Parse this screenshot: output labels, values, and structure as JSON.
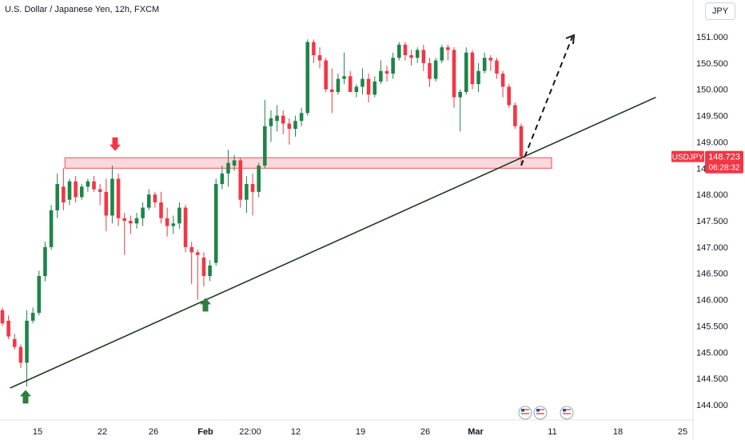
{
  "header": {
    "title": "U.S. Dollar / Japanese Yen, 12h, FXCM",
    "currency_button": "JPY"
  },
  "price_label": {
    "symbol": "USDJPY",
    "price": "148.723",
    "countdown": "06:28:32"
  },
  "colors": {
    "up": "#22ab94",
    "up_fill": "#1e8449",
    "down": "#f23645",
    "trendline": "#1f3a1f",
    "zone_fill": "#f7b8bd",
    "zone_border": "#e8505b",
    "arrow_up": "#2e7d3e",
    "arrow_down": "#f23645"
  },
  "icons": [
    "us-flag-event-icon",
    "us-flag-event-icon",
    "us-flag-event-icon"
  ],
  "chart_data": {
    "type": "candlestick",
    "title": "U.S. Dollar / Japanese Yen, 12h, FXCM",
    "y_axis": {
      "ylim": [
        143.9,
        151.3
      ],
      "ticks": [
        "151.000",
        "150.500",
        "150.000",
        "149.500",
        "149.000",
        "148.500",
        "148.000",
        "147.500",
        "147.000",
        "146.500",
        "146.000",
        "145.500",
        "145.000",
        "144.500",
        "144.000"
      ]
    },
    "x_axis": {
      "ticks": [
        "15",
        "22",
        "26",
        "Feb",
        "22:00",
        "12",
        "19",
        "26",
        "Mar",
        "11",
        "18",
        "25"
      ]
    },
    "candles": [
      [
        145.8,
        145.85,
        145.5,
        145.55
      ],
      [
        145.6,
        145.7,
        145.25,
        145.3
      ],
      [
        145.25,
        145.35,
        145.05,
        145.1
      ],
      [
        145.1,
        145.15,
        144.7,
        144.8
      ],
      [
        144.8,
        145.8,
        144.35,
        145.6
      ],
      [
        145.6,
        145.85,
        145.55,
        145.75
      ],
      [
        145.75,
        146.55,
        145.7,
        146.45
      ],
      [
        146.45,
        147.1,
        146.35,
        147.0
      ],
      [
        147.0,
        147.8,
        146.95,
        147.7
      ],
      [
        147.7,
        148.4,
        147.55,
        148.2
      ],
      [
        148.15,
        148.5,
        147.7,
        147.85
      ],
      [
        147.9,
        148.3,
        147.8,
        148.25
      ],
      [
        148.25,
        148.35,
        147.85,
        147.95
      ],
      [
        147.95,
        148.2,
        147.9,
        148.15
      ],
      [
        148.15,
        148.3,
        148.05,
        148.25
      ],
      [
        148.25,
        148.35,
        148.05,
        148.1
      ],
      [
        148.1,
        148.2,
        147.8,
        148.05
      ],
      [
        148.05,
        148.3,
        147.3,
        147.6
      ],
      [
        147.6,
        148.55,
        147.45,
        148.3
      ],
      [
        148.3,
        148.4,
        147.4,
        147.55
      ],
      [
        147.55,
        147.65,
        146.85,
        147.5
      ],
      [
        147.5,
        147.6,
        147.25,
        147.45
      ],
      [
        147.45,
        147.65,
        147.35,
        147.55
      ],
      [
        147.55,
        147.85,
        147.4,
        147.75
      ],
      [
        147.75,
        148.1,
        147.7,
        148.0
      ],
      [
        148.0,
        148.05,
        147.75,
        147.85
      ],
      [
        147.85,
        148.05,
        147.45,
        147.55
      ],
      [
        147.55,
        147.75,
        147.2,
        147.4
      ],
      [
        147.4,
        147.6,
        147.25,
        147.45
      ],
      [
        147.45,
        147.85,
        147.35,
        147.75
      ],
      [
        147.75,
        147.8,
        146.9,
        147.0
      ],
      [
        147.0,
        147.1,
        146.3,
        146.9
      ],
      [
        146.9,
        146.95,
        146.0,
        146.85
      ],
      [
        146.8,
        146.9,
        146.25,
        146.45
      ],
      [
        146.45,
        146.75,
        146.35,
        146.65
      ],
      [
        146.7,
        148.3,
        146.65,
        148.2
      ],
      [
        148.2,
        148.55,
        148.1,
        148.4
      ],
      [
        148.4,
        148.85,
        148.15,
        148.6
      ],
      [
        148.55,
        148.75,
        148.45,
        148.65
      ],
      [
        148.65,
        148.7,
        147.75,
        147.9
      ],
      [
        147.9,
        148.35,
        147.65,
        148.2
      ],
      [
        148.2,
        148.4,
        147.6,
        148.05
      ],
      [
        148.05,
        148.6,
        147.95,
        148.55
      ],
      [
        148.55,
        149.8,
        148.5,
        149.3
      ],
      [
        149.3,
        149.6,
        149.0,
        149.45
      ],
      [
        149.4,
        149.7,
        149.2,
        149.5
      ],
      [
        149.5,
        149.6,
        149.15,
        149.35
      ],
      [
        149.35,
        149.45,
        148.95,
        149.25
      ],
      [
        149.25,
        149.5,
        149.1,
        149.4
      ],
      [
        149.4,
        149.65,
        149.3,
        149.55
      ],
      [
        149.55,
        150.95,
        149.5,
        150.9
      ],
      [
        150.9,
        150.95,
        150.5,
        150.65
      ],
      [
        150.65,
        150.8,
        150.4,
        150.55
      ],
      [
        150.55,
        150.6,
        149.95,
        150.0
      ],
      [
        150.0,
        150.4,
        149.55,
        149.95
      ],
      [
        149.95,
        150.3,
        149.9,
        150.2
      ],
      [
        150.2,
        150.7,
        150.1,
        150.25
      ],
      [
        150.25,
        150.35,
        149.95,
        149.95
      ],
      [
        149.95,
        150.1,
        149.85,
        150.05
      ],
      [
        150.05,
        150.4,
        149.9,
        150.2
      ],
      [
        150.2,
        150.3,
        149.75,
        149.9
      ],
      [
        149.9,
        150.25,
        149.85,
        150.15
      ],
      [
        150.15,
        150.55,
        150.1,
        150.35
      ],
      [
        150.35,
        150.45,
        150.15,
        150.3
      ],
      [
        150.3,
        150.7,
        150.2,
        150.6
      ],
      [
        150.6,
        150.9,
        150.55,
        150.85
      ],
      [
        150.85,
        150.9,
        150.55,
        150.65
      ],
      [
        150.65,
        150.75,
        150.45,
        150.6
      ],
      [
        150.6,
        150.8,
        150.5,
        150.75
      ],
      [
        150.75,
        150.85,
        150.35,
        150.5
      ],
      [
        150.5,
        150.6,
        150.05,
        150.2
      ],
      [
        150.2,
        150.6,
        150.15,
        150.55
      ],
      [
        150.55,
        150.85,
        150.5,
        150.8
      ],
      [
        150.8,
        150.85,
        150.55,
        150.75
      ],
      [
        150.75,
        150.8,
        149.65,
        149.85
      ],
      [
        149.85,
        150.0,
        149.2,
        149.95
      ],
      [
        149.95,
        150.8,
        149.9,
        150.7
      ],
      [
        150.7,
        150.75,
        150.0,
        150.1
      ],
      [
        150.1,
        150.5,
        149.95,
        150.35
      ],
      [
        150.35,
        150.7,
        150.3,
        150.6
      ],
      [
        150.6,
        150.65,
        150.35,
        150.55
      ],
      [
        150.55,
        150.6,
        150.2,
        150.3
      ],
      [
        150.3,
        150.35,
        149.85,
        150.05
      ],
      [
        150.05,
        150.1,
        149.65,
        149.7
      ],
      [
        149.7,
        149.75,
        149.25,
        149.3
      ],
      [
        149.3,
        149.35,
        148.55,
        148.72
      ]
    ],
    "annotations": {
      "resistance_zone": {
        "x_range": [
          "Jan 18",
          "Mar 8"
        ],
        "y_range": [
          148.5,
          148.7
        ]
      },
      "trendline": {
        "from": [
          "Jan 12",
          144.32
        ],
        "to": [
          "Mar 21",
          149.85
        ]
      },
      "projection_dashed": {
        "from": [
          "Mar 8",
          148.55
        ],
        "to": [
          "Mar 13",
          151.0
        ]
      },
      "markers": [
        {
          "type": "arrow-up",
          "at": [
            "Jan 12",
            144.1
          ]
        },
        {
          "type": "arrow-down",
          "at": [
            "Jan 23",
            148.95
          ]
        },
        {
          "type": "arrow-up",
          "at": [
            "Feb 1",
            145.85
          ]
        }
      ]
    },
    "last_price": 148.723
  }
}
